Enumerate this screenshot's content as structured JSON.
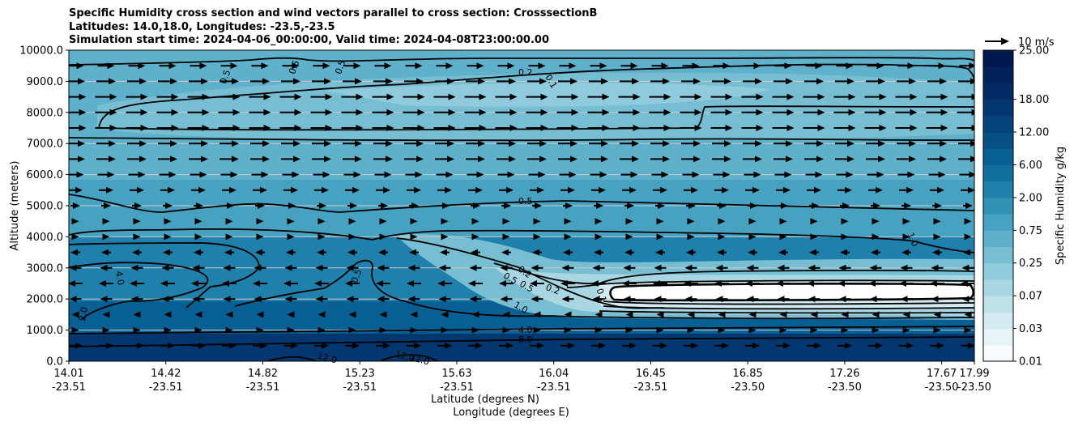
{
  "chart_data": {
    "type": "contourf_cross_section",
    "title_lines": [
      "Specific Humidity cross section and wind vectors parallel to cross section: CrosssectionB",
      "Latitudes: 14.0,18.0, Longitudes: -23.5,-23.5",
      "Simulation start time: 2024-04-06_00:00:00, Valid time: 2024-04-08T23:00:00.00"
    ],
    "xlabel_1": "Latitude (degrees N)",
    "xlabel_2": "Longitude (degrees E)",
    "ylabel": "Altitude (meters)",
    "ylim": [
      0,
      10000
    ],
    "yticks": [
      "0.0",
      "1000.0",
      "2000.0",
      "3000.0",
      "4000.0",
      "5000.0",
      "6000.0",
      "7000.0",
      "8000.0",
      "9000.0",
      "10000.0"
    ],
    "xtick_lat": [
      "14.01",
      "14.42",
      "14.82",
      "15.23",
      "15.63",
      "16.04",
      "16.45",
      "16.85",
      "17.26",
      "17.67",
      "17.99"
    ],
    "xtick_lon": [
      "-23.51",
      "-23.51",
      "-23.51",
      "-23.51",
      "-23.51",
      "-23.51",
      "-23.51",
      "-23.50",
      "-23.50",
      "-23.50",
      "-23.50"
    ],
    "colorbar": {
      "label": "Specific Humidity g/kg",
      "ticks": [
        "0.01",
        "0.03",
        "0.07",
        "0.25",
        "0.75",
        "2.00",
        "6.00",
        "12.00",
        "18.00",
        "25.00"
      ],
      "levels": [
        0.01,
        0.02,
        0.03,
        0.05,
        0.07,
        0.1,
        0.25,
        0.5,
        0.75,
        1.0,
        2.0,
        4.0,
        6.0,
        8.0,
        12.0,
        15.0,
        18.0,
        20.0,
        22.0,
        25.0
      ],
      "colors": [
        "#f7fbfd",
        "#e6f3f6",
        "#d3ebf0",
        "#bfe2ea",
        "#a8d7e3",
        "#8fcbdc",
        "#77bed3",
        "#5fb0ca",
        "#47a1c0",
        "#3391b6",
        "#1f80ab",
        "#106f9f",
        "#075f93",
        "#045087",
        "#04437c",
        "#033770",
        "#032c65",
        "#03225b",
        "#021850"
      ]
    },
    "wind_key": {
      "label": "10 m/s",
      "speed": 10
    },
    "contour_labels": [
      "0.1",
      "0.2",
      "0.5",
      "1.0",
      "2.0",
      "4.0",
      "8.0",
      "12.0"
    ],
    "wind_rows": [
      {
        "alt": 9500,
        "speed": 7
      },
      {
        "alt": 9000,
        "speed": 8
      },
      {
        "alt": 8500,
        "speed": 9
      },
      {
        "alt": 8000,
        "speed": 9
      },
      {
        "alt": 7500,
        "speed": 9
      },
      {
        "alt": 7000,
        "speed": 8
      },
      {
        "alt": 6500,
        "speed": 8
      },
      {
        "alt": 6000,
        "speed": 7
      },
      {
        "alt": 5500,
        "speed": 6
      },
      {
        "alt": 5000,
        "speed": 4
      },
      {
        "alt": 4500,
        "speed": 3
      },
      {
        "alt": 4000,
        "speed": 3
      },
      {
        "alt": 3500,
        "speed": -4
      },
      {
        "alt": 3000,
        "speed": -5
      },
      {
        "alt": 2500,
        "speed": -6
      },
      {
        "alt": 2000,
        "speed": -5
      },
      {
        "alt": 1500,
        "speed": -3
      },
      {
        "alt": 1000,
        "speed": 3
      },
      {
        "alt": 500,
        "speed": 6
      }
    ]
  }
}
